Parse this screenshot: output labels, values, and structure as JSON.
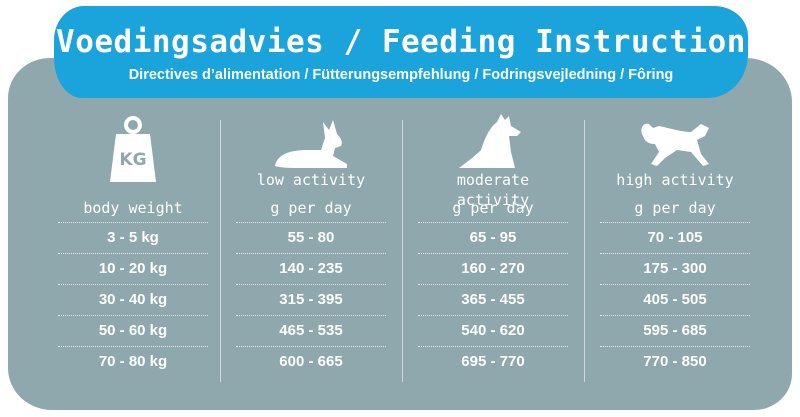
{
  "banner": {
    "title": "Voedingsadvies / Feeding Instruction",
    "subtitle": "Directives d’alimentation / Fütterungsempfehlung / Fodringsvejledning / Fôring"
  },
  "columns": {
    "weight": {
      "icon": "weight-kg-icon",
      "icon_text": "KG",
      "header": "body weight",
      "values": [
        "3 - 5 kg",
        "10 - 20 kg",
        "30 - 40 kg",
        "50 - 60 kg",
        "70 - 80 kg"
      ]
    },
    "low": {
      "icon": "lying-dog-icon",
      "header": "low activity",
      "unit": "g per day",
      "values": [
        "55 - 80",
        "140 - 235",
        "315 - 395",
        "465 - 535",
        "600 - 665"
      ]
    },
    "moderate": {
      "icon": "sitting-dog-icon",
      "header": "moderate activity",
      "unit": "g per day",
      "values": [
        "65 - 95",
        "160 - 270",
        "365 - 455",
        "540 - 620",
        "695 - 770"
      ]
    },
    "high": {
      "icon": "running-dog-icon",
      "header": "high activity",
      "unit": "g per day",
      "values": [
        "70 - 105",
        "175 - 300",
        "405 - 505",
        "595 - 685",
        "770 - 850"
      ]
    }
  },
  "colors": {
    "banner": "#1ba3dc",
    "panel": "#8fa8ad",
    "text": "#ffffff"
  }
}
